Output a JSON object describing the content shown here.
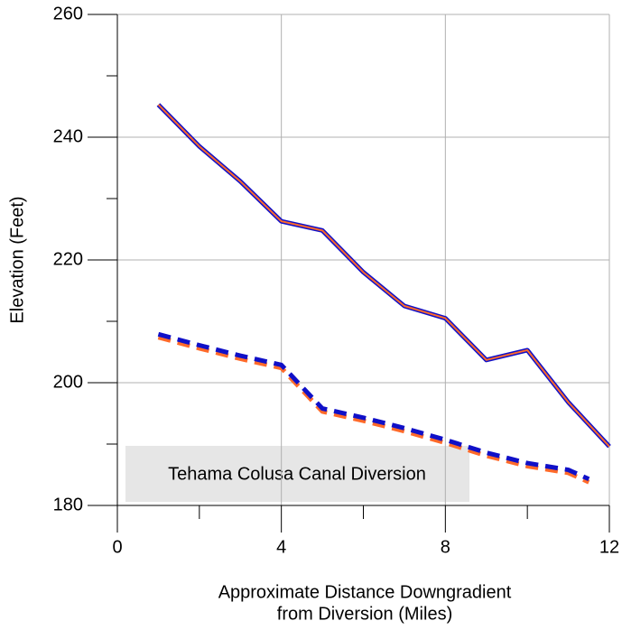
{
  "chart_data": {
    "type": "line",
    "xlabel": [
      "Approximate Distance Downgradient",
      "from Diversion (Miles)"
    ],
    "ylabel": "Elevation (Feet)",
    "annotation": "Tehama Colusa Canal Diversion",
    "xlim": [
      0,
      12
    ],
    "ylim": [
      180,
      260
    ],
    "xticks": [
      0,
      4,
      8,
      12
    ],
    "yticks": [
      180,
      200,
      220,
      240,
      260
    ],
    "xminorticks": [
      2,
      6,
      10
    ],
    "yminorticks": [
      190,
      210,
      230,
      250
    ],
    "grid": true,
    "series": [
      {
        "color": "#1010c8",
        "style": "solid",
        "x": [
          1,
          2,
          3,
          4,
          5,
          6,
          7,
          8,
          9,
          10,
          11,
          12
        ],
        "values": [
          245.3,
          238.5,
          232.8,
          226.3,
          224.8,
          218,
          212.5,
          210.5,
          203.7,
          205.3,
          196.8,
          189.6
        ]
      },
      {
        "color": "#ff6a2a",
        "style": "solid",
        "x": [
          1,
          2,
          3,
          4,
          5,
          6,
          7,
          8,
          9,
          10,
          11,
          12
        ],
        "values": [
          245.3,
          238.5,
          232.8,
          226.3,
          224.8,
          218,
          212.5,
          210.5,
          203.7,
          205.3,
          196.8,
          189.6
        ]
      },
      {
        "color": "#ff6a2a",
        "style": "dashed",
        "x": [
          1,
          2,
          3,
          4,
          5,
          6,
          7,
          8,
          9,
          10,
          11,
          11.5
        ],
        "values": [
          207.4,
          205.6,
          203.9,
          202.4,
          195.3,
          193.8,
          192.1,
          190.2,
          188.1,
          186.4,
          185.3,
          183.8
        ]
      },
      {
        "color": "#1010c8",
        "style": "dashed",
        "x": [
          1,
          2,
          3,
          4,
          5,
          6,
          7,
          8,
          9,
          10,
          11,
          11.5
        ],
        "values": [
          207.9,
          206.1,
          204.4,
          202.9,
          195.8,
          194.3,
          192.6,
          190.7,
          188.6,
          186.9,
          185.8,
          184.3
        ]
      }
    ]
  }
}
